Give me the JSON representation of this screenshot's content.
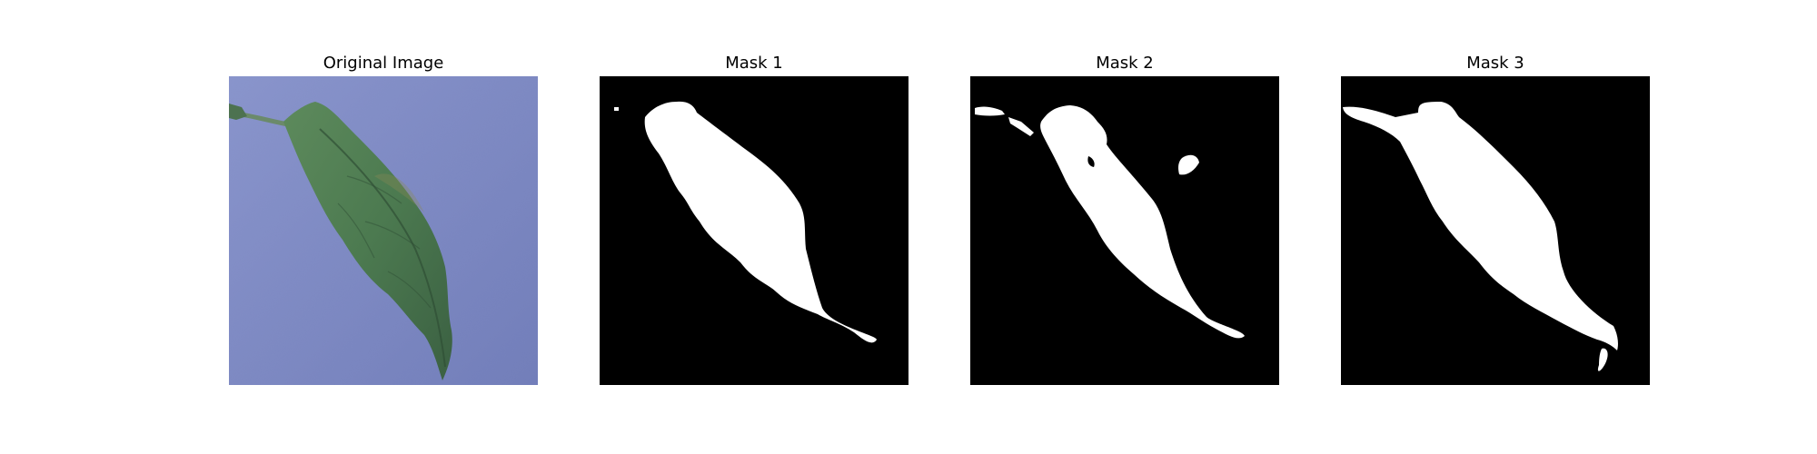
{
  "figure": {
    "panels": [
      {
        "title": "Original Image",
        "kind": "photo"
      },
      {
        "title": "Mask 1",
        "kind": "mask"
      },
      {
        "title": "Mask 2",
        "kind": "mask"
      },
      {
        "title": "Mask 3",
        "kind": "mask"
      }
    ]
  },
  "colors": {
    "background": "#7f8cc4",
    "leaf": "#4f7a4f",
    "leaf_dark": "#2f4f35",
    "mask_bg": "#000000",
    "mask_fg": "#ffffff"
  }
}
